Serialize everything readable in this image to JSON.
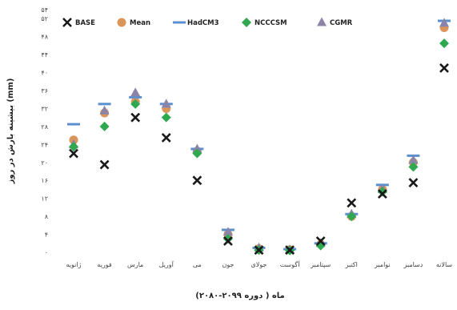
{
  "chart_data": {
    "type": "scatter",
    "title": "",
    "xlabel": "ماه ( دوره ۲۰۹۹-۲۰۸۰)",
    "ylabel": "بیشینه بارش در روز (mm)",
    "categories": [
      "ژانویه",
      "فوریه",
      "مارس",
      "آوریل",
      "می",
      "جون",
      "جولای",
      "آگوست",
      "سپتامبر",
      "اکتبر",
      "نوامبر",
      "دسامبر",
      "سالانه"
    ],
    "ylim": [
      0,
      54
    ],
    "yticks": [
      0,
      4,
      8,
      12,
      16,
      20,
      24,
      28,
      32,
      36,
      40,
      44,
      48,
      52,
      54
    ],
    "ytick_labels": [
      "۰",
      "۴",
      "۸",
      "۱۲",
      "۱۶",
      "۲۰",
      "۲۴",
      "۲۸",
      "۳۲",
      "۳۶",
      "۴۰",
      "۴۴",
      "۴۸",
      "۵۲",
      "۵۴"
    ],
    "grid": false,
    "legend_position": "top",
    "series": [
      {
        "name": "BASE",
        "marker": "x",
        "color": "#1a1a1a",
        "values": [
          22,
          19.5,
          30,
          25.5,
          16,
          2.5,
          0.5,
          0.5,
          2.5,
          11,
          13,
          15.5,
          41
        ]
      },
      {
        "name": "Mean",
        "marker": "circle",
        "color": "#d9955a",
        "values": [
          25,
          31,
          33.5,
          32,
          22.5,
          4,
          0.8,
          0.6,
          1.8,
          8,
          14,
          20,
          50
        ]
      },
      {
        "name": "HadCM3",
        "marker": "dash",
        "color": "#5a8fd0",
        "values": [
          28.5,
          33,
          34.5,
          33,
          23,
          5,
          1,
          0.7,
          2,
          8.5,
          15,
          21.5,
          51.5
        ]
      },
      {
        "name": "NCCCSM",
        "marker": "diamond",
        "color": "#2fa84f",
        "values": [
          23.5,
          28,
          33,
          30,
          22,
          3,
          0.5,
          0.4,
          1.5,
          8,
          13.5,
          19,
          46.5
        ]
      },
      {
        "name": "CGMR",
        "marker": "triangle",
        "color": "#8c84a8",
        "values": [
          24,
          31.5,
          35.5,
          33,
          23,
          4.5,
          1,
          0.6,
          2,
          8.5,
          14,
          20.5,
          51
        ]
      }
    ]
  }
}
